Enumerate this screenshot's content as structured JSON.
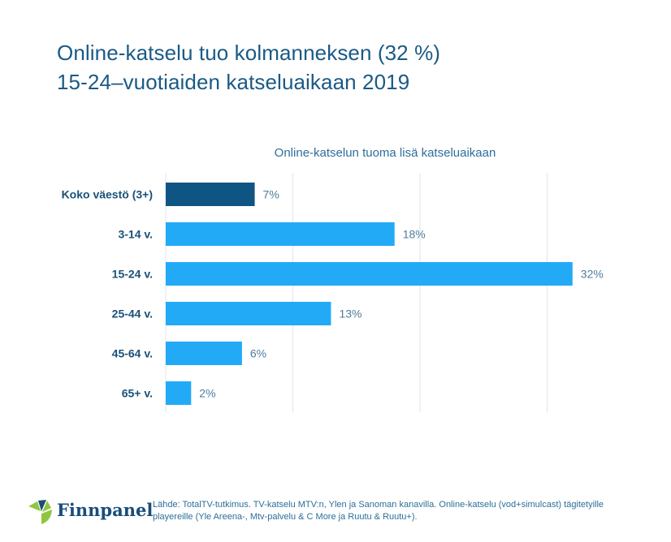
{
  "slide": {
    "title_lines": [
      "Online-katselu tuo kolmanneksen (32 %)",
      "15-24–vuotiaiden katseluaikaan 2019"
    ],
    "source_lines": [
      "Lähde: TotalTV-tutkimus. TV-katselu MTV:n, Ylen ja Sanoman kanavilla. Online-katselu (vod+simulcast) tägitetyille",
      "playereille (Yle Areena-, Mtv-palvelu & C More  ja Ruutu & Ruutu+)."
    ],
    "logo": {
      "text": "Finnpanel",
      "icon": "finnpanel-logo-icon"
    }
  },
  "colors": {
    "title": "#1a5a86",
    "highlight_bar": "#0f5583",
    "bar": "#22aaf7",
    "label": "#1a5178",
    "value_label": "#4e7c9b",
    "grid": "#dde6ee"
  },
  "chart_data": {
    "type": "bar",
    "orientation": "horizontal",
    "title": "Online-katselun tuoma lisä katseluaikaan",
    "xlabel": "",
    "ylabel": "",
    "categories": [
      "Koko väestö (3+)",
      "3-14 v.",
      "15-24 v.",
      "25-44 v.",
      "45-64 v.",
      "65+ v."
    ],
    "values": [
      7,
      18,
      32,
      13,
      6,
      2
    ],
    "value_labels": [
      "7%",
      "18%",
      "32%",
      "13%",
      "6%",
      "2%"
    ],
    "highlight_index": 0,
    "xlim": [
      0,
      40
    ],
    "grid_x": [
      0,
      10,
      20,
      30
    ],
    "grid": true,
    "legend": "none",
    "unit": "%"
  }
}
